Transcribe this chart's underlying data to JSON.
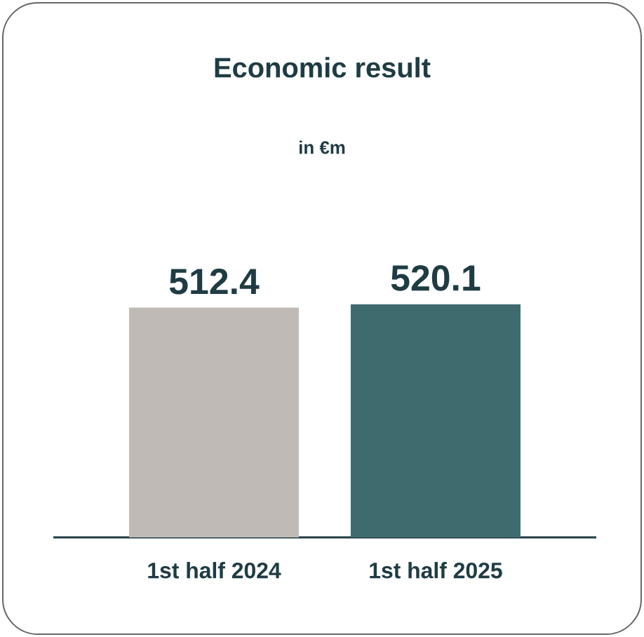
{
  "chart_data": {
    "type": "bar",
    "title": "Economic result",
    "subtitle": "in €m",
    "categories": [
      "1st half 2024",
      "1st half 2025"
    ],
    "values": [
      512.4,
      520.1
    ],
    "colors": [
      "#bfbab5",
      "#3f6b6e"
    ],
    "data_labels": true
  }
}
